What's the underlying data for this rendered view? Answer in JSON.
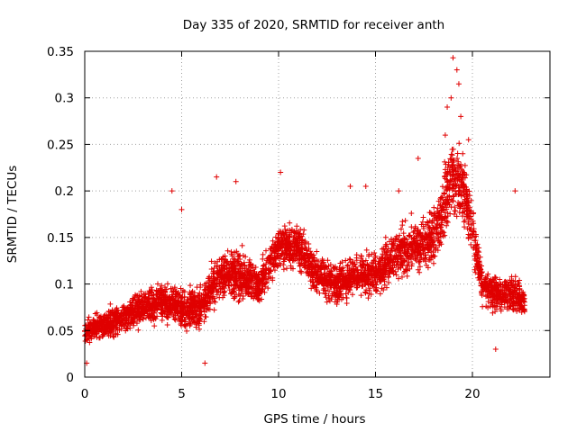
{
  "chart_data": {
    "type": "scatter",
    "title": "Day 335 of 2020, SRMTID for receiver anth",
    "xlabel": "GPS time / hours",
    "ylabel": "SRMTID / TECUs",
    "xlim": [
      0,
      24
    ],
    "ylim": [
      0,
      0.35
    ],
    "xticks": [
      0,
      5,
      10,
      15,
      20
    ],
    "xtick_labels": [
      "0",
      "5",
      "10",
      "15",
      "20"
    ],
    "yticks": [
      0,
      0.05,
      0.1,
      0.15,
      0.2,
      0.25,
      0.3,
      0.35
    ],
    "ytick_labels": [
      "0",
      "0.05",
      "0.1",
      "0.15",
      "0.2",
      "0.25",
      "0.3",
      "0.35"
    ],
    "grid": true,
    "marker": "plus",
    "color": "#e00000",
    "profile": {
      "description_hours": [
        0,
        1,
        2,
        3,
        4,
        5,
        6,
        7,
        8,
        9,
        10,
        11,
        12,
        13,
        14,
        15,
        16,
        17,
        18,
        18.5,
        19,
        19.5,
        20,
        20.5,
        21,
        22,
        22.7
      ],
      "typical_values": [
        0.05,
        0.055,
        0.065,
        0.075,
        0.08,
        0.075,
        0.075,
        0.11,
        0.11,
        0.1,
        0.14,
        0.14,
        0.11,
        0.1,
        0.11,
        0.11,
        0.13,
        0.14,
        0.15,
        0.18,
        0.22,
        0.2,
        0.16,
        0.1,
        0.09,
        0.09,
        0.08
      ],
      "spread": [
        0.02,
        0.025,
        0.025,
        0.03,
        0.03,
        0.035,
        0.035,
        0.04,
        0.04,
        0.035,
        0.04,
        0.035,
        0.035,
        0.035,
        0.035,
        0.035,
        0.04,
        0.045,
        0.05,
        0.06,
        0.07,
        0.06,
        0.05,
        0.035,
        0.035,
        0.035,
        0.03
      ],
      "points_per_hour": 180
    },
    "series": [
      {
        "name": "SRMTID",
        "highlight_points": [
          {
            "x": 19.0,
            "y": 0.343
          },
          {
            "x": 19.2,
            "y": 0.33
          },
          {
            "x": 19.3,
            "y": 0.315
          },
          {
            "x": 18.9,
            "y": 0.3
          },
          {
            "x": 18.7,
            "y": 0.29
          },
          {
            "x": 19.4,
            "y": 0.28
          },
          {
            "x": 18.6,
            "y": 0.26
          },
          {
            "x": 19.8,
            "y": 0.255
          },
          {
            "x": 19.5,
            "y": 0.24
          },
          {
            "x": 17.2,
            "y": 0.235
          },
          {
            "x": 6.8,
            "y": 0.215
          },
          {
            "x": 10.1,
            "y": 0.22
          },
          {
            "x": 7.8,
            "y": 0.21
          },
          {
            "x": 14.5,
            "y": 0.205
          },
          {
            "x": 13.7,
            "y": 0.205
          },
          {
            "x": 22.2,
            "y": 0.2
          },
          {
            "x": 16.2,
            "y": 0.2
          },
          {
            "x": 5.0,
            "y": 0.18
          },
          {
            "x": 4.5,
            "y": 0.2
          },
          {
            "x": 0.1,
            "y": 0.015
          },
          {
            "x": 6.2,
            "y": 0.015
          },
          {
            "x": 21.2,
            "y": 0.03
          }
        ]
      }
    ]
  }
}
